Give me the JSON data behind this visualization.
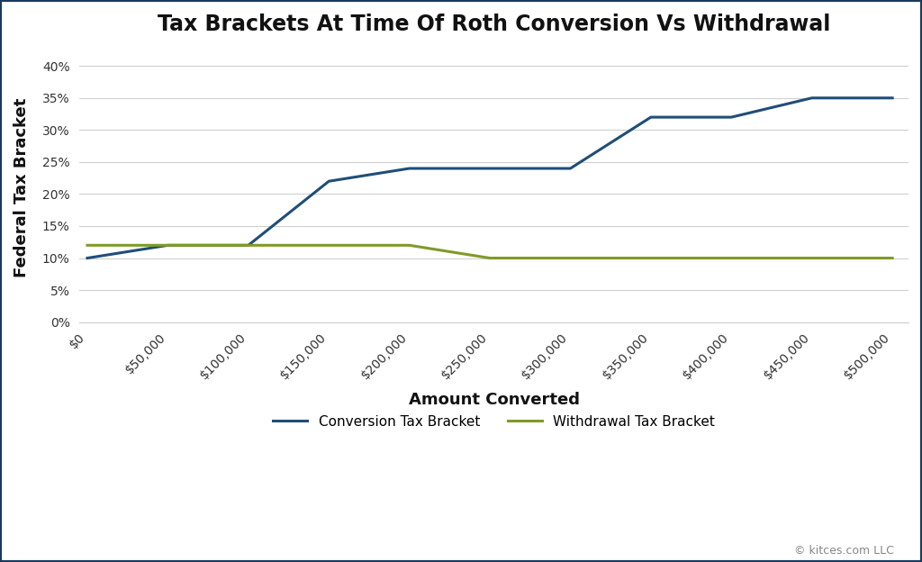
{
  "title": "Tax Brackets At Time Of Roth Conversion Vs Withdrawal",
  "xlabel": "Amount Converted",
  "ylabel": "Federal Tax Bracket",
  "background_color": "#ffffff",
  "plot_background_color": "#ffffff",
  "grid_color": "#d0d0d0",
  "border_color": "#1a3a5c",
  "x_values": [
    0,
    50000,
    100000,
    150000,
    200000,
    250000,
    300000,
    350000,
    400000,
    450000,
    500000
  ],
  "conversion_bracket": [
    10,
    12,
    12,
    22,
    24,
    24,
    24,
    32,
    32,
    35,
    35
  ],
  "withdrawal_bracket": [
    12,
    12,
    12,
    12,
    12,
    10,
    10,
    10,
    10,
    10,
    10
  ],
  "conversion_color": "#1f4e79",
  "withdrawal_color": "#7f9a28",
  "line_width": 2.2,
  "legend_conversion": "Conversion Tax Bracket",
  "legend_withdrawal": "Withdrawal Tax Bracket",
  "ylim": [
    0,
    42
  ],
  "yticks": [
    0,
    5,
    10,
    15,
    20,
    25,
    30,
    35,
    40
  ],
  "title_fontsize": 17,
  "axis_label_fontsize": 13,
  "tick_fontsize": 10,
  "legend_fontsize": 11,
  "copyright_text": "© kitces.com LLC",
  "copyright_fontsize": 9,
  "copyright_color": "#888888"
}
